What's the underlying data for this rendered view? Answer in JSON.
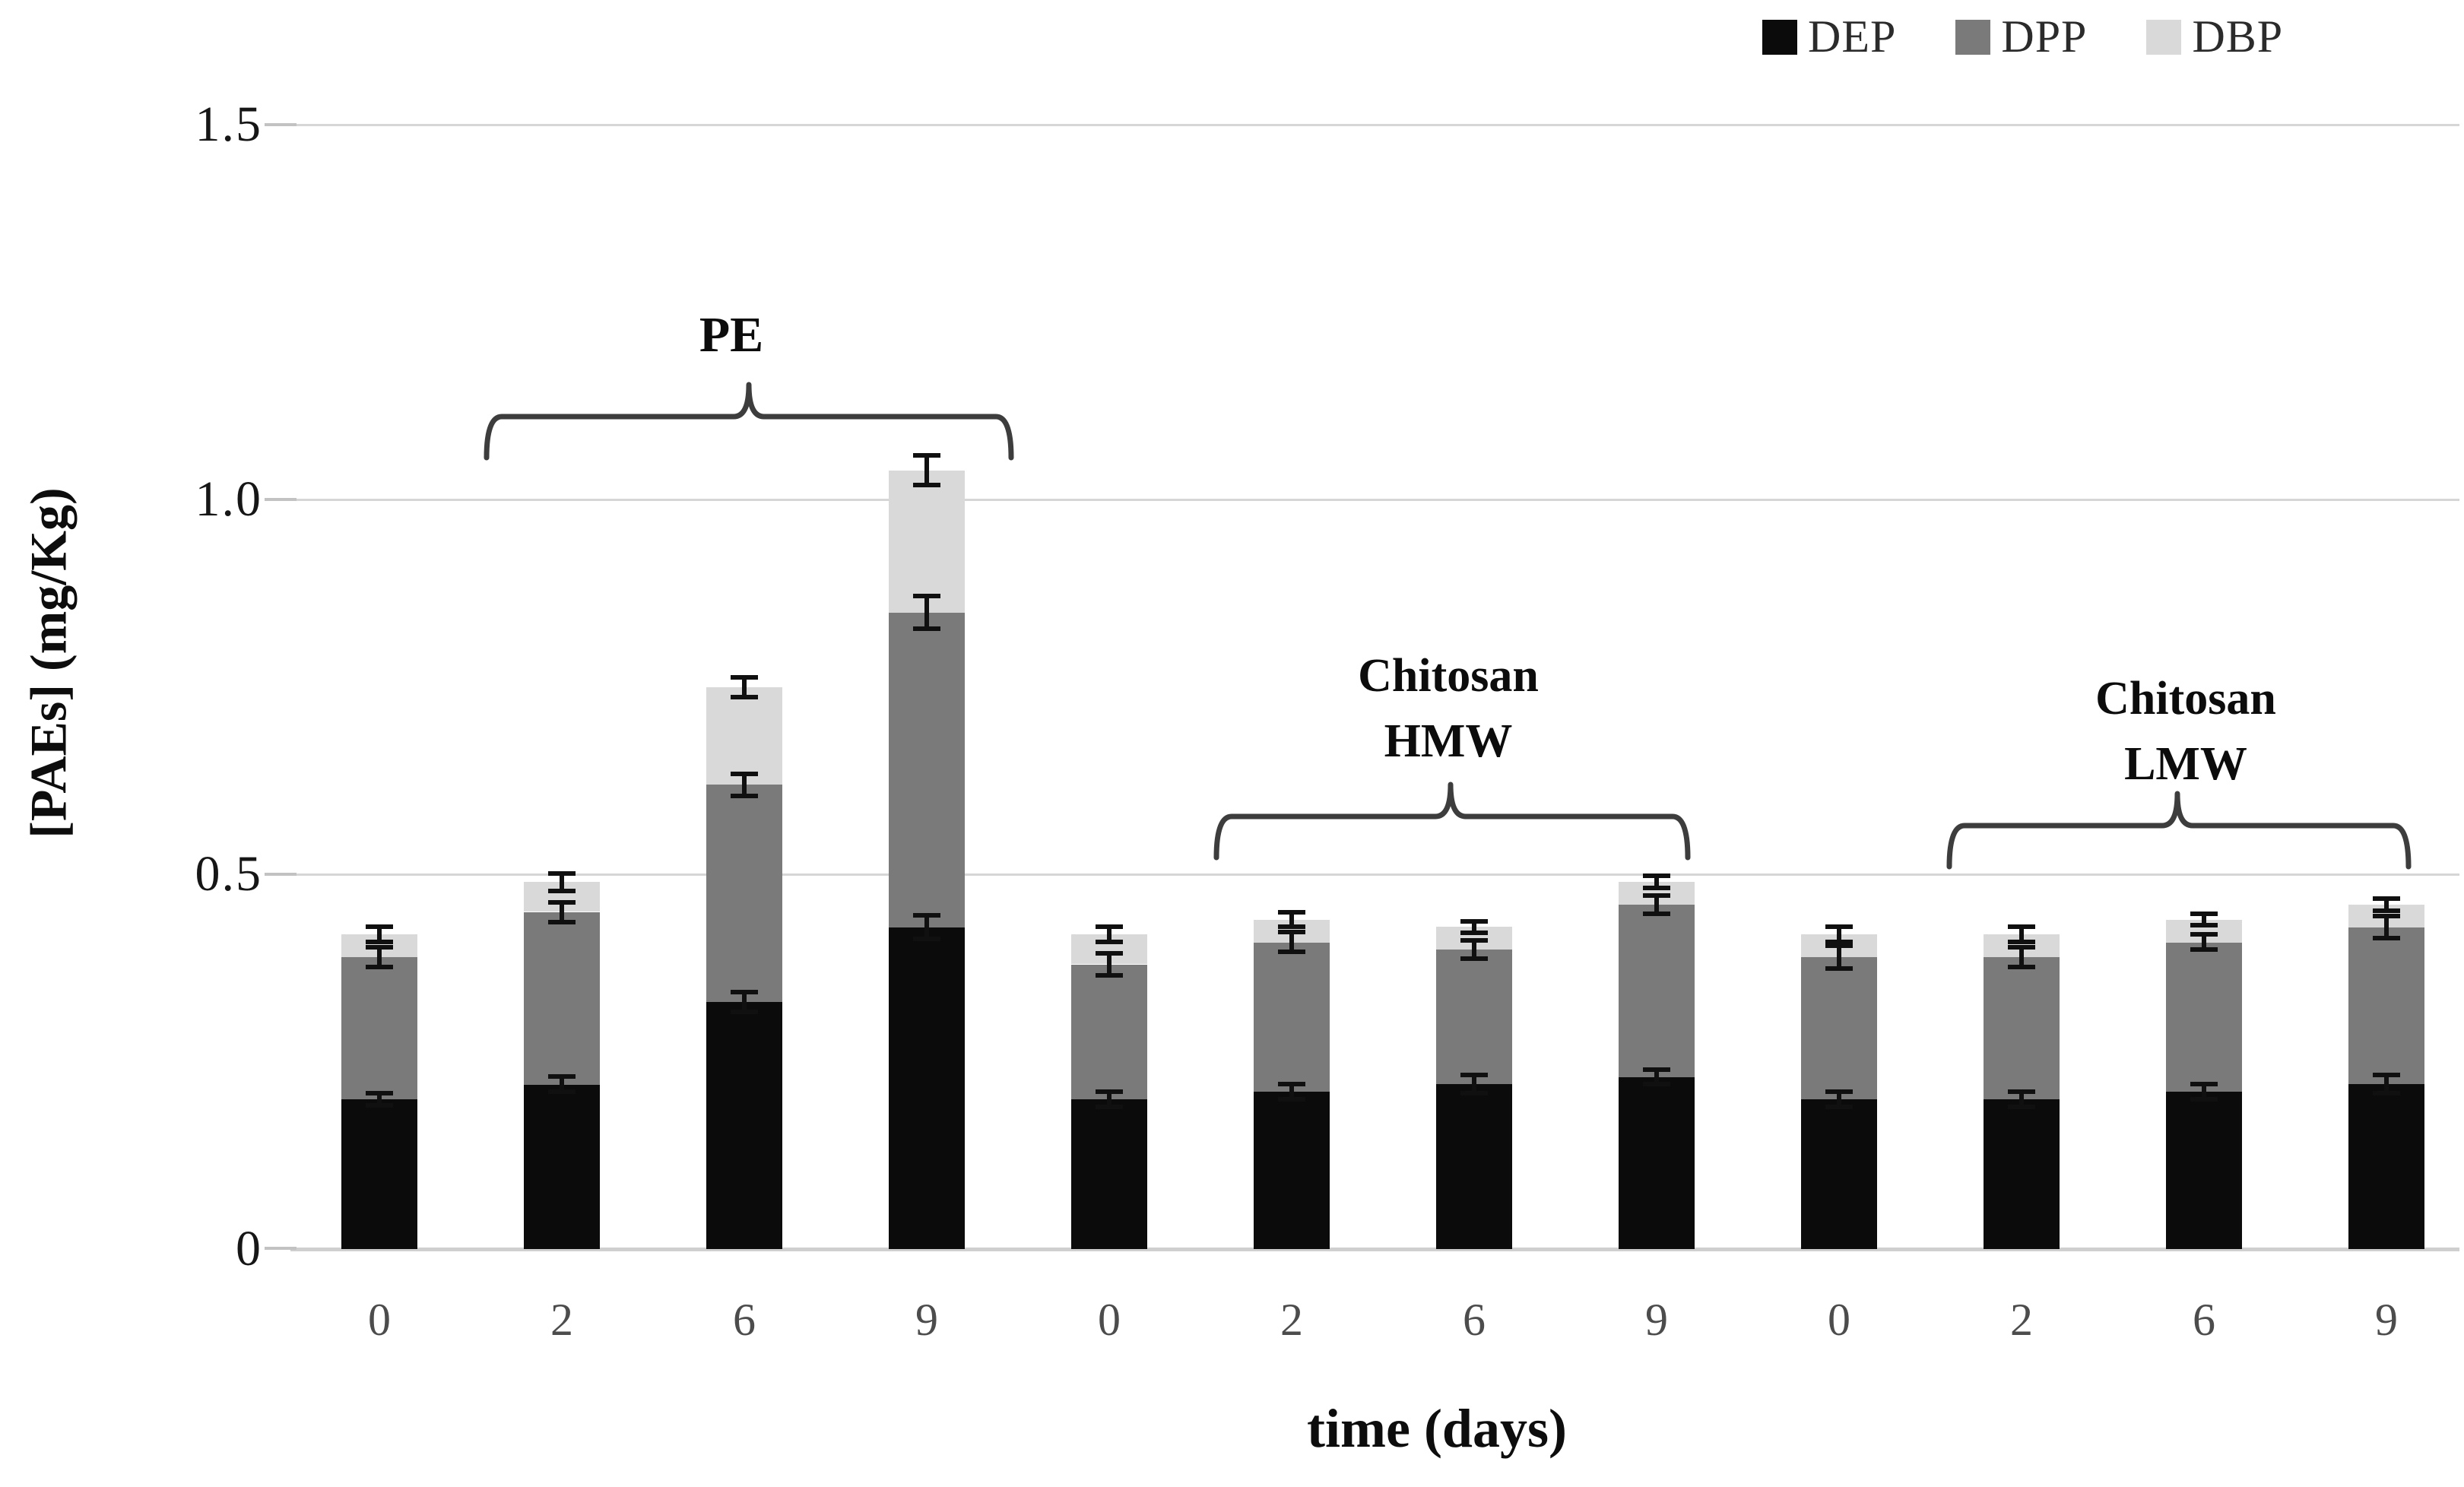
{
  "chart_data": {
    "type": "bar",
    "stacked": true,
    "title": "",
    "xlabel": "time (days)",
    "ylabel": "[PAEs] (mg/Kg)",
    "ylim": [
      0,
      1.5
    ],
    "yticks": [
      1.5,
      1.0,
      0.5,
      0
    ],
    "ytick_labels": [
      "1.5",
      "1.0",
      "0.5",
      "0"
    ],
    "grid": "horizontal",
    "legend_position": "top-right",
    "series_names": [
      "DEP",
      "DPP",
      "DBP"
    ],
    "series_colors": [
      "#0b0b0b",
      "#7a7a7a",
      "#d9d9d9"
    ],
    "groups": [
      {
        "name": "PE",
        "annotation_lines": [
          "PE"
        ],
        "days": [
          "0",
          "2",
          "6",
          "9"
        ],
        "bars": [
          {
            "day": "0",
            "DEP": 0.2,
            "DPP": 0.19,
            "DBP": 0.03,
            "errors": [
              0.008,
              0.013,
              0.01
            ]
          },
          {
            "day": "2",
            "DEP": 0.22,
            "DPP": 0.23,
            "DBP": 0.04,
            "errors": [
              0.01,
              0.013,
              0.012
            ]
          },
          {
            "day": "6",
            "DEP": 0.33,
            "DPP": 0.29,
            "DBP": 0.13,
            "errors": [
              0.013,
              0.015,
              0.013
            ]
          },
          {
            "day": "9",
            "DEP": 0.43,
            "DPP": 0.42,
            "DBP": 0.19,
            "errors": [
              0.016,
              0.022,
              0.02
            ]
          }
        ]
      },
      {
        "name": "Chitosan HMW",
        "annotation_lines": [
          "Chitosan",
          "HMW"
        ],
        "days": [
          "0",
          "2",
          "6",
          "9"
        ],
        "bars": [
          {
            "day": "0",
            "DEP": 0.2,
            "DPP": 0.18,
            "DBP": 0.04,
            "errors": [
              0.01,
              0.015,
              0.01
            ]
          },
          {
            "day": "2",
            "DEP": 0.21,
            "DPP": 0.2,
            "DBP": 0.03,
            "errors": [
              0.01,
              0.013,
              0.01
            ]
          },
          {
            "day": "6",
            "DEP": 0.22,
            "DPP": 0.18,
            "DBP": 0.03,
            "errors": [
              0.012,
              0.012,
              0.008
            ]
          },
          {
            "day": "9",
            "DEP": 0.23,
            "DPP": 0.23,
            "DBP": 0.03,
            "errors": [
              0.01,
              0.012,
              0.008
            ]
          }
        ]
      },
      {
        "name": "Chitosan LMW",
        "annotation_lines": [
          "Chitosan",
          "LMW"
        ],
        "days": [
          "0",
          "2",
          "6",
          "9"
        ],
        "bars": [
          {
            "day": "0",
            "DEP": 0.2,
            "DPP": 0.19,
            "DBP": 0.03,
            "errors": [
              0.01,
              0.015,
              0.01
            ]
          },
          {
            "day": "2",
            "DEP": 0.2,
            "DPP": 0.19,
            "DBP": 0.03,
            "errors": [
              0.01,
              0.013,
              0.01
            ]
          },
          {
            "day": "6",
            "DEP": 0.21,
            "DPP": 0.2,
            "DBP": 0.03,
            "errors": [
              0.01,
              0.01,
              0.008
            ]
          },
          {
            "day": "9",
            "DEP": 0.22,
            "DPP": 0.21,
            "DBP": 0.03,
            "errors": [
              0.012,
              0.015,
              0.008
            ]
          }
        ]
      }
    ]
  }
}
